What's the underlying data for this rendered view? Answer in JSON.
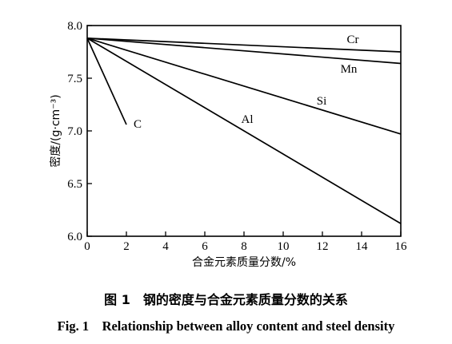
{
  "chart_data": {
    "type": "line",
    "xlabel": "合金元素质量分数/%",
    "ylabel": "密度/(g·cm⁻³)",
    "xlim": [
      0,
      16
    ],
    "ylim": [
      6.0,
      8.0
    ],
    "xticks": [
      "0",
      "2",
      "4",
      "6",
      "8",
      "10",
      "12",
      "14",
      "16"
    ],
    "yticks": [
      "6.0",
      "6.5",
      "7.0",
      "7.5",
      "8.0"
    ],
    "grid": false,
    "legend": "none",
    "series": [
      {
        "name": "Cr",
        "x": [
          0,
          16
        ],
        "y": [
          7.88,
          7.75
        ]
      },
      {
        "name": "Mn",
        "x": [
          0,
          16
        ],
        "y": [
          7.88,
          7.64
        ]
      },
      {
        "name": "Si",
        "x": [
          0,
          16
        ],
        "y": [
          7.88,
          6.97
        ]
      },
      {
        "name": "Al",
        "x": [
          0,
          16
        ],
        "y": [
          7.88,
          6.12
        ]
      },
      {
        "name": "C",
        "x": [
          0,
          2
        ],
        "y": [
          7.88,
          7.06
        ]
      }
    ]
  },
  "caption": {
    "cn": "图 1　钢的密度与合金元素质量分数的关系",
    "en": "Fig. 1　Relationship between alloy content and steel density"
  }
}
